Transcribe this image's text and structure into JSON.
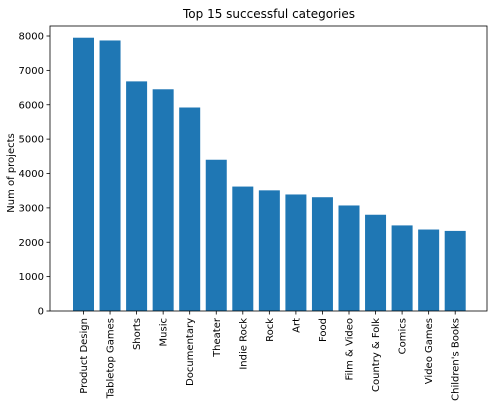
{
  "chart_data": {
    "type": "bar",
    "title": "Top 15 successful categories",
    "xlabel": "",
    "ylabel": "Num of projects",
    "categories": [
      "Product Design",
      "Tabletop Games",
      "Shorts",
      "Music",
      "Documentary",
      "Theater",
      "Indie Rock",
      "Rock",
      "Art",
      "Food",
      "Film & Video",
      "Country & Folk",
      "Comics",
      "Video Games",
      "Children's Books"
    ],
    "values": [
      7950,
      7870,
      6680,
      6450,
      5920,
      4400,
      3620,
      3510,
      3390,
      3310,
      3070,
      2800,
      2490,
      2370,
      2330
    ],
    "ylim": [
      0,
      8000
    ],
    "yticks": [
      0,
      1000,
      2000,
      3000,
      4000,
      5000,
      6000,
      7000,
      8000
    ],
    "grid": false,
    "bar_color": "#1f77b4"
  }
}
